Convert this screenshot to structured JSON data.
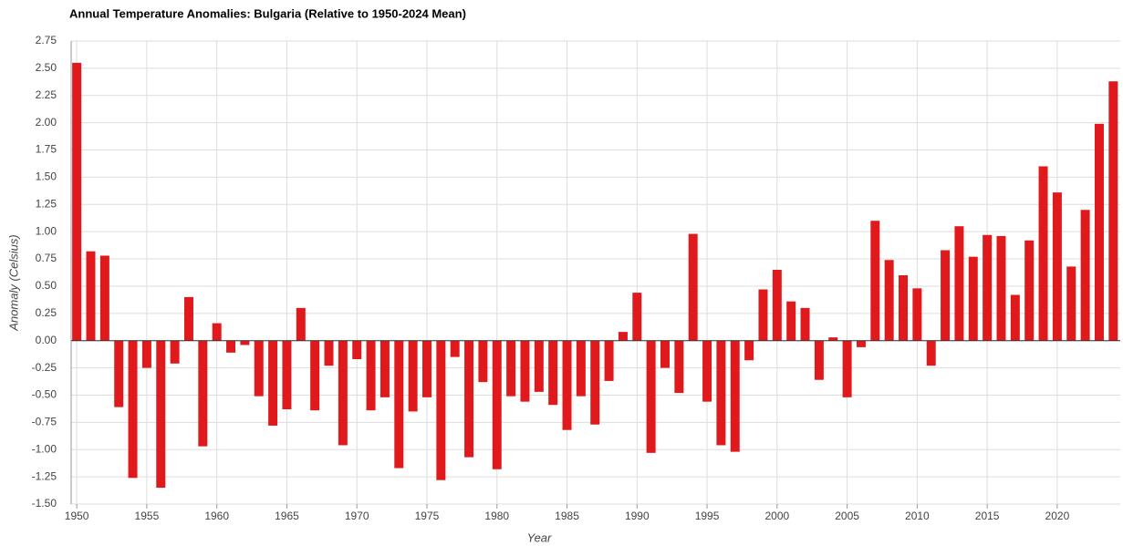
{
  "chart_data": {
    "type": "bar",
    "title": "Annual Temperature Anomalies: Bulgaria (Relative to 1950-2024 Mean)",
    "x_label": "Year",
    "y_label": "Anomaly (Celsius)",
    "color": "#e0191c",
    "grid": true,
    "x": [
      1950,
      1951,
      1952,
      1953,
      1954,
      1955,
      1956,
      1957,
      1958,
      1959,
      1960,
      1961,
      1962,
      1963,
      1964,
      1965,
      1966,
      1967,
      1968,
      1969,
      1970,
      1971,
      1972,
      1973,
      1974,
      1975,
      1976,
      1977,
      1978,
      1979,
      1980,
      1981,
      1982,
      1983,
      1984,
      1985,
      1986,
      1987,
      1988,
      1989,
      1990,
      1991,
      1992,
      1993,
      1994,
      1995,
      1996,
      1997,
      1998,
      1999,
      2000,
      2001,
      2002,
      2003,
      2004,
      2005,
      2006,
      2007,
      2008,
      2009,
      2010,
      2011,
      2012,
      2013,
      2014,
      2015,
      2016,
      2017,
      2018,
      2019,
      2020,
      2021,
      2022,
      2023,
      2024
    ],
    "values": [
      2.55,
      0.82,
      0.78,
      -0.61,
      -1.26,
      -0.25,
      -1.35,
      -0.21,
      0.4,
      -0.97,
      0.16,
      -0.11,
      -0.04,
      -0.51,
      -0.78,
      -0.63,
      0.3,
      -0.64,
      -0.23,
      -0.96,
      -0.17,
      -0.64,
      -0.52,
      -1.17,
      -0.65,
      -0.52,
      -1.28,
      -0.15,
      -1.07,
      -0.38,
      -1.18,
      -0.51,
      -0.56,
      -0.47,
      -0.59,
      -0.82,
      -0.51,
      -0.77,
      -0.37,
      0.08,
      0.44,
      -1.03,
      -0.25,
      -0.48,
      0.98,
      -0.56,
      -0.96,
      -1.02,
      -0.18,
      0.47,
      0.65,
      0.36,
      0.3,
      -0.36,
      0.03,
      -0.52,
      -0.06,
      1.1,
      0.74,
      0.6,
      0.48,
      -0.23,
      0.83,
      1.05,
      0.77,
      0.97,
      0.96,
      0.42,
      0.92,
      1.6,
      1.36,
      0.68,
      1.2,
      1.99,
      2.38
    ],
    "xlim": [
      1949.6,
      2024.5
    ],
    "xticks": [
      1950,
      1955,
      1960,
      1965,
      1970,
      1975,
      1980,
      1985,
      1990,
      1995,
      2000,
      2005,
      2010,
      2015,
      2020
    ],
    "ylim": [
      -1.5,
      2.75
    ],
    "yticks": [
      {
        "value": -1.5,
        "label": "-1.50"
      },
      -1.25,
      {
        "value": -1,
        "label": "-1.00"
      },
      -0.75,
      {
        "value": -0.5,
        "label": "-0.50"
      },
      -0.25,
      {
        "value": 0,
        "label": "0.00"
      },
      0.25,
      {
        "value": 0.5,
        "label": "0.50"
      },
      0.75,
      {
        "value": 1,
        "label": "1.00"
      },
      1.25,
      {
        "value": 1.5,
        "label": "1.50"
      },
      1.75,
      {
        "value": 2,
        "label": "2.00"
      },
      2.25,
      {
        "value": 2.5,
        "label": "2.50"
      },
      2.75
    ]
  }
}
